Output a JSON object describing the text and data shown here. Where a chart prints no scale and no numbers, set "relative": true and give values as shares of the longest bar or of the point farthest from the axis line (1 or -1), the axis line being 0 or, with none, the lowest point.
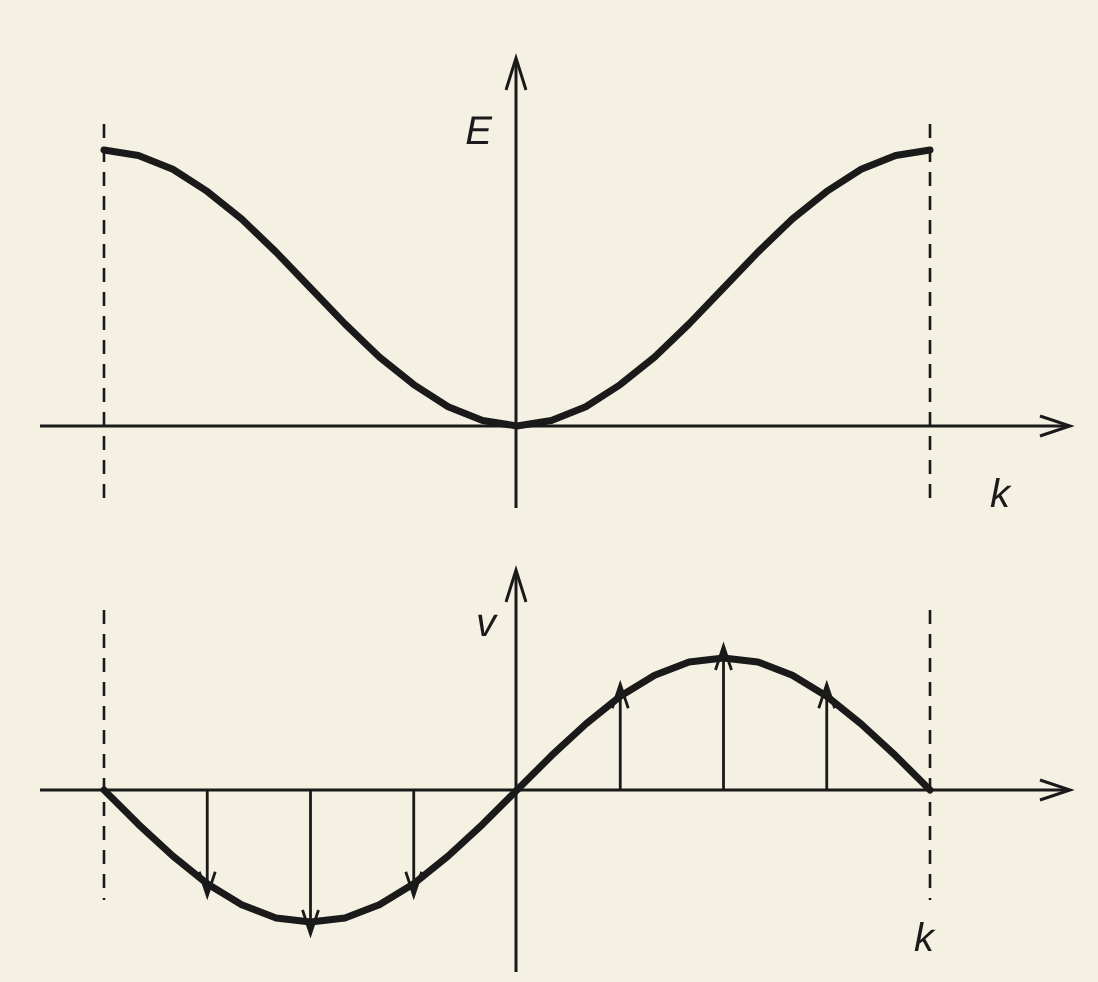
{
  "chart_data": [
    {
      "type": "line",
      "relative": true,
      "ylabel": "E",
      "xlabel": "k",
      "categories": [
        null,
        null,
        null,
        null,
        null,
        null,
        null,
        null,
        null,
        null,
        null,
        null,
        null,
        null,
        null,
        null,
        null,
        null,
        null,
        null,
        null,
        null,
        null,
        null,
        null
      ],
      "series": [
        {
          "color": "#1a1a1a",
          "line_style": "solid",
          "values": [
            1,
            0.98,
            0.93,
            0.85,
            0.75,
            0.63,
            0.5,
            0.37,
            0.25,
            0.15,
            0.07,
            0.02,
            0,
            0.02,
            0.07,
            0.15,
            0.25,
            0.37,
            0.5,
            0.63,
            0.75,
            0.85,
            0.93,
            0.98,
            1
          ]
        }
      ]
    },
    {
      "type": "line",
      "relative": true,
      "ylabel": "v",
      "xlabel": "k",
      "categories": [
        null,
        null,
        null,
        null,
        null,
        null,
        null,
        null,
        null,
        null,
        null,
        null,
        null,
        null,
        null,
        null,
        null,
        null,
        null,
        null,
        null,
        null,
        null,
        null,
        null
      ],
      "series": [
        {
          "color": "#1a1a1a",
          "line_style": "solid",
          "values": [
            0,
            -0.26,
            -0.5,
            -0.71,
            -0.87,
            -0.97,
            -1,
            -0.97,
            -0.87,
            -0.71,
            -0.5,
            -0.26,
            0,
            0.26,
            0.5,
            0.71,
            0.87,
            0.97,
            1,
            0.97,
            0.87,
            0.71,
            0.5,
            0.26,
            0
          ]
        },
        {
          "type": "lollipop",
          "color": "#1a1a1a",
          "values": [
            null,
            null,
            null,
            -0.71,
            null,
            null,
            -1,
            null,
            null,
            -0.71,
            null,
            null,
            null,
            null,
            null,
            0.71,
            null,
            null,
            1,
            null,
            null,
            0.71,
            null,
            null,
            null
          ]
        }
      ]
    }
  ]
}
